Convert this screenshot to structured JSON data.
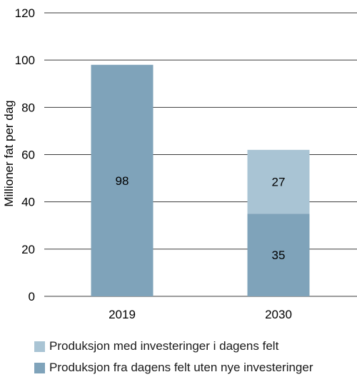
{
  "chart_data": {
    "type": "bar",
    "stacked": true,
    "categories": [
      "2019",
      "2030"
    ],
    "series": [
      {
        "name": "Produksjon fra dagens felt uten nye investeringer",
        "values": [
          98,
          35
        ],
        "color": "#7fa3ba"
      },
      {
        "name": "Produksjon med investeringer i dagens felt",
        "values": [
          0,
          27
        ],
        "color": "#a9c4d4"
      }
    ],
    "data_labels": [
      [
        "98",
        "35"
      ],
      [
        "",
        "27"
      ]
    ],
    "ylabel": "Millioner fat per dag",
    "ylim": [
      0,
      120
    ],
    "yticks": [
      0,
      20,
      40,
      60,
      80,
      100,
      120
    ],
    "grid": true,
    "legend_order": [
      1,
      0
    ],
    "legend_position": "bottom"
  }
}
